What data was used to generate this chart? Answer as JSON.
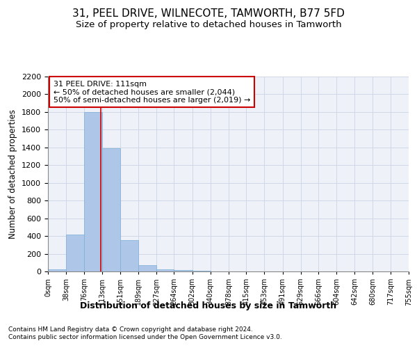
{
  "title": "31, PEEL DRIVE, WILNECOTE, TAMWORTH, B77 5FD",
  "subtitle": "Size of property relative to detached houses in Tamworth",
  "xlabel": "Distribution of detached houses by size in Tamworth",
  "ylabel": "Number of detached properties",
  "footer_line1": "Contains HM Land Registry data © Crown copyright and database right 2024.",
  "footer_line2": "Contains public sector information licensed under the Open Government Licence v3.0.",
  "bin_edges": [
    0,
    38,
    76,
    113,
    151,
    189,
    227,
    264,
    302,
    340,
    378,
    415,
    453,
    491,
    529,
    566,
    604,
    642,
    680,
    717,
    755
  ],
  "bar_heights": [
    20,
    420,
    1800,
    1390,
    355,
    70,
    25,
    15,
    5,
    2,
    1,
    1,
    0,
    0,
    0,
    0,
    0,
    0,
    0,
    0
  ],
  "bar_color": "#aec6e8",
  "bar_edgecolor": "#7aaed6",
  "grid_color": "#d0d8e8",
  "vline_x": 111,
  "vline_color": "#cc0000",
  "annotation_text": "31 PEEL DRIVE: 111sqm\n← 50% of detached houses are smaller (2,044)\n50% of semi-detached houses are larger (2,019) →",
  "annotation_box_color": "#ffffff",
  "annotation_box_edgecolor": "#cc0000",
  "ylim": [
    0,
    2200
  ],
  "yticks": [
    0,
    200,
    400,
    600,
    800,
    1000,
    1200,
    1400,
    1600,
    1800,
    2000,
    2200
  ],
  "bg_color": "#eef2f8",
  "title_fontsize": 11,
  "subtitle_fontsize": 9.5,
  "axis_fontsize": 9
}
